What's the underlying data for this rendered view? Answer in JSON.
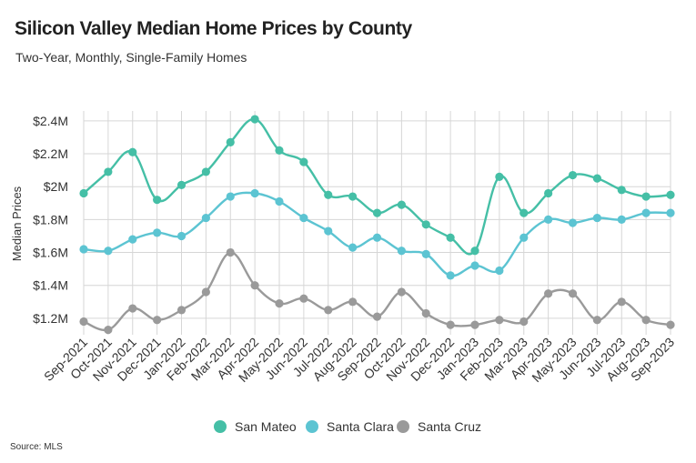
{
  "chart_data": {
    "type": "line",
    "title": "Silicon Valley Median Home Prices by County",
    "subtitle": "Two-Year, Monthly, Single-Family Homes",
    "source": "Source: MLS",
    "xlabel": "",
    "ylabel": "Median Prices",
    "ylim": [
      1.1,
      2.46
    ],
    "y_ticks": [
      {
        "value": 1.2,
        "label": "$1.2M"
      },
      {
        "value": 1.4,
        "label": "$1.4M"
      },
      {
        "value": 1.6,
        "label": "$1.6M"
      },
      {
        "value": 1.8,
        "label": "$1.8M"
      },
      {
        "value": 2.0,
        "label": "$2M"
      },
      {
        "value": 2.2,
        "label": "$2.2M"
      },
      {
        "value": 2.4,
        "label": "$2.4M"
      }
    ],
    "grid": true,
    "legend": "bottom",
    "categories": [
      "Sep-2021",
      "Oct-2021",
      "Nov-2021",
      "Dec-2021",
      "Jan-2022",
      "Feb-2022",
      "Mar-2022",
      "Apr-2022",
      "May-2022",
      "Jun-2022",
      "Jul-2022",
      "Aug-2022",
      "Sep-2022",
      "Oct-2022",
      "Nov-2022",
      "Dec-2022",
      "Jan-2023",
      "Feb-2023",
      "Mar-2023",
      "Apr-2023",
      "May-2023",
      "Jun-2023",
      "Jul-2023",
      "Aug-2023",
      "Sep-2023"
    ],
    "series": [
      {
        "name": "San Mateo",
        "color": "#45bfa6",
        "values": [
          1.96,
          2.09,
          2.21,
          1.92,
          2.01,
          2.09,
          2.27,
          2.41,
          2.22,
          2.15,
          1.95,
          1.94,
          1.84,
          1.89,
          1.77,
          1.69,
          1.61,
          2.06,
          1.84,
          1.96,
          2.07,
          2.05,
          1.98,
          1.94,
          1.95
        ]
      },
      {
        "name": "Santa Clara",
        "color": "#5cc4d2",
        "values": [
          1.62,
          1.61,
          1.68,
          1.72,
          1.7,
          1.81,
          1.94,
          1.96,
          1.91,
          1.81,
          1.73,
          1.63,
          1.69,
          1.61,
          1.59,
          1.46,
          1.52,
          1.49,
          1.69,
          1.8,
          1.78,
          1.81,
          1.8,
          1.84,
          1.84
        ]
      },
      {
        "name": "Santa Cruz",
        "color": "#9a9a9a",
        "values": [
          1.18,
          1.13,
          1.26,
          1.19,
          1.25,
          1.36,
          1.6,
          1.4,
          1.29,
          1.32,
          1.25,
          1.3,
          1.21,
          1.36,
          1.23,
          1.16,
          1.16,
          1.19,
          1.18,
          1.35,
          1.35,
          1.19,
          1.3,
          1.19,
          1.16
        ]
      }
    ]
  }
}
